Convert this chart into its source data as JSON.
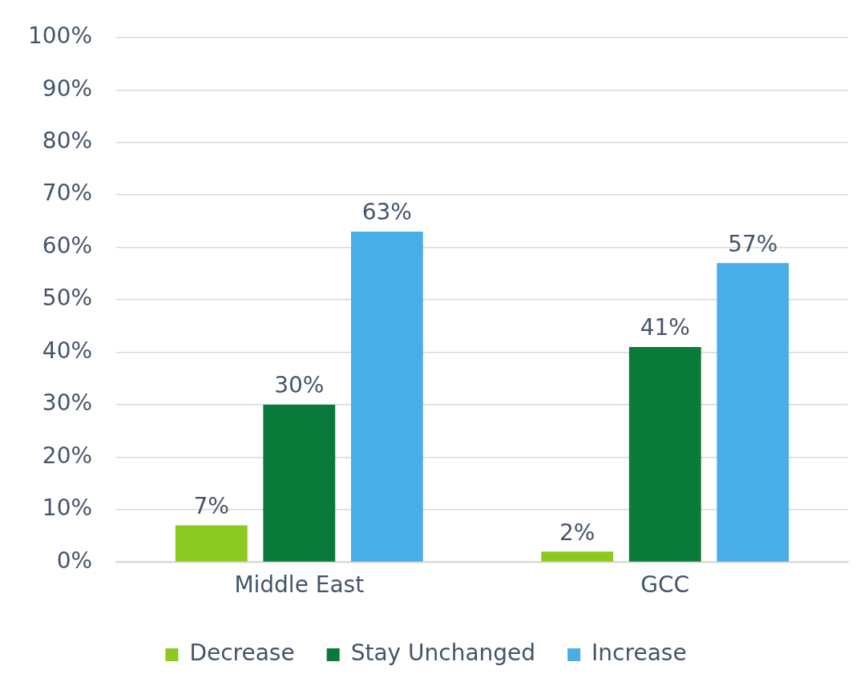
{
  "chart_data": {
    "type": "bar",
    "categories": [
      "Middle East",
      "GCC"
    ],
    "series": [
      {
        "name": "Decrease",
        "color": "#8cc920",
        "values": [
          7,
          2
        ],
        "value_labels": [
          "7%",
          "2%"
        ]
      },
      {
        "name": "Stay Unchanged",
        "color": "#0a7a3a",
        "values": [
          30,
          41
        ],
        "value_labels": [
          "30%",
          "41%"
        ]
      },
      {
        "name": "Increase",
        "color": "#4aaee6",
        "values": [
          63,
          57
        ],
        "value_labels": [
          "63%",
          "57%"
        ]
      }
    ],
    "ylim": [
      0,
      100
    ],
    "yticks": [
      {
        "value": 0,
        "label": "0%"
      },
      {
        "value": 10,
        "label": "10%"
      },
      {
        "value": 20,
        "label": "20%"
      },
      {
        "value": 30,
        "label": "30%"
      },
      {
        "value": 40,
        "label": "40%"
      },
      {
        "value": 50,
        "label": "50%"
      },
      {
        "value": 60,
        "label": "60%"
      },
      {
        "value": 70,
        "label": "70%"
      },
      {
        "value": 80,
        "label": "80%"
      },
      {
        "value": 90,
        "label": "90%"
      },
      {
        "value": 100,
        "label": "100%"
      }
    ],
    "grid": "y",
    "legend": "bottom"
  }
}
